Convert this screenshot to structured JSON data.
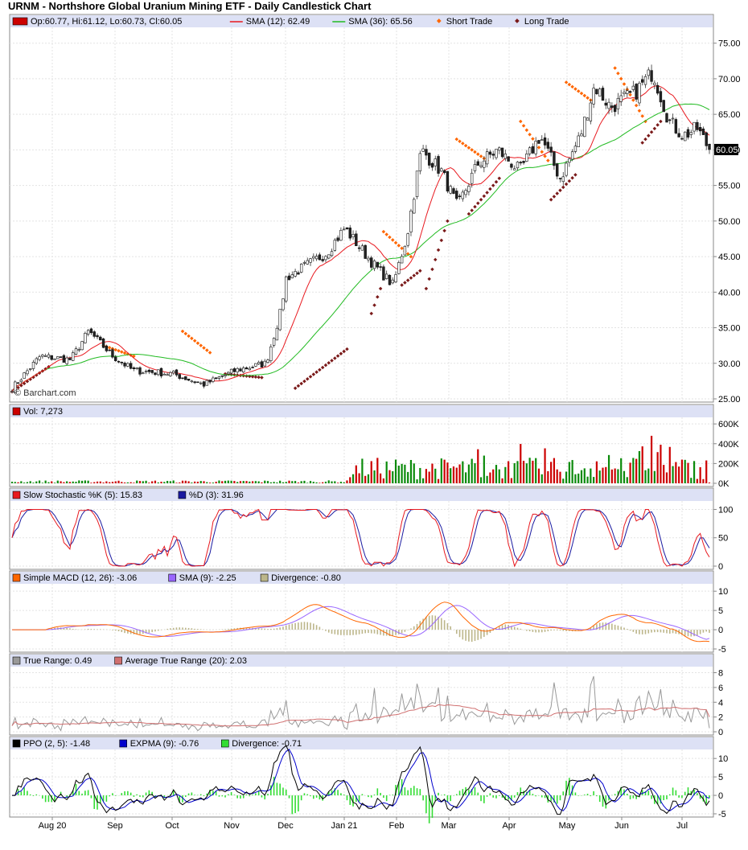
{
  "title": "URNM - Northshore Global Uranium Mining ETF - Daily Candlestick Chart",
  "watermark": "© Barchart.com",
  "x_tick_labels": [
    "Aug 20",
    "Sep",
    "Oct",
    "Nov",
    "Dec",
    "Jan 21",
    "Feb",
    "Mar",
    "Apr",
    "May",
    "Jun",
    "Jul"
  ],
  "colors": {
    "up": "#0a8a0a",
    "down": "#cc0000",
    "legend_bg": "#dde1f5",
    "sma12": "#e8191f",
    "sma36": "#22bb22",
    "short_trade": "#ff6600",
    "long_trade": "#7a1a1a",
    "stoch_k": "#e8191f",
    "stoch_d": "#1a1aa0",
    "macd": "#ff6600",
    "macd_sma": "#9966ff",
    "macd_div": "#bcb68a",
    "tr": "#999999",
    "atr": "#d07070",
    "ppo": "#000000",
    "expma": "#0000cc",
    "ppo_div": "#33dd33"
  },
  "panels": {
    "price": {
      "legend": [
        "Op:60.77, Hi:61.12, Lo:60.73, Cl:60.05",
        "SMA (12): 62.49",
        "SMA (36): 65.56",
        "Short Trade",
        "Long Trade"
      ],
      "y_ticks": [
        "75.00",
        "70.00",
        "65.00",
        "60.00",
        "55.00",
        "50.00",
        "45.00",
        "40.00",
        "35.00",
        "30.00",
        "25.00"
      ],
      "last_price": "60.05"
    },
    "volume": {
      "legend": [
        "Vol: 7,273"
      ],
      "y_ticks": [
        "600K",
        "400K",
        "200K",
        "0K"
      ]
    },
    "stochastic": {
      "legend": [
        "Slow Stochastic %K (5): 15.83",
        "%D (3): 31.96"
      ],
      "y_ticks": [
        "100",
        "50",
        "0"
      ]
    },
    "macd": {
      "legend": [
        "Simple MACD (12, 26): -3.06",
        "SMA (9): -2.25",
        "Divergence: -0.80"
      ],
      "y_ticks": [
        "10",
        "5",
        "0",
        "-5"
      ]
    },
    "true_range": {
      "legend": [
        "True Range: 0.49",
        "Average True Range (20): 2.03"
      ],
      "y_ticks": [
        "8",
        "6",
        "4",
        "2",
        "0"
      ]
    },
    "ppo": {
      "legend": [
        "PPO (2, 5): -1.48",
        "EXPMA (9): -0.76",
        "Divergence: -0.71"
      ],
      "y_ticks": [
        "10",
        "5",
        "0",
        "-5"
      ]
    }
  },
  "chart_data": {
    "type": "candlestick",
    "title": "URNM - Northshore Global Uranium Mining ETF - Daily Candlestick Chart",
    "x_ticks": [
      "Aug 20",
      "Sep",
      "Oct",
      "Nov",
      "Dec",
      "Jan 21",
      "Feb",
      "Mar",
      "Apr",
      "May",
      "Jun",
      "Jul"
    ],
    "price_ylim": [
      25,
      77
    ],
    "price_key_points": [
      [
        "2020-07-27",
        26.5
      ],
      [
        "2020-08-10",
        31
      ],
      [
        "2020-08-25",
        30.5
      ],
      [
        "2020-09-03",
        34.5
      ],
      [
        "2020-09-15",
        31
      ],
      [
        "2020-09-25",
        29
      ],
      [
        "2020-10-15",
        28.5
      ],
      [
        "2020-10-30",
        27
      ],
      [
        "2020-11-15",
        29
      ],
      [
        "2020-11-30",
        30
      ],
      [
        "2020-12-07",
        37
      ],
      [
        "2020-12-10",
        42
      ],
      [
        "2020-12-30",
        45.5
      ],
      [
        "2021-01-08",
        49
      ],
      [
        "2021-01-22",
        44
      ],
      [
        "2021-02-01",
        41
      ],
      [
        "2021-02-08",
        48
      ],
      [
        "2021-02-15",
        60
      ],
      [
        "2021-02-25",
        57
      ],
      [
        "2021-03-05",
        52
      ],
      [
        "2021-03-15",
        58
      ],
      [
        "2021-03-25",
        60
      ],
      [
        "2021-04-05",
        57
      ],
      [
        "2021-04-15",
        62
      ],
      [
        "2021-04-25",
        56
      ],
      [
        "2021-05-05",
        62
      ],
      [
        "2021-05-12",
        69
      ],
      [
        "2021-05-20",
        66
      ],
      [
        "2021-06-01",
        68
      ],
      [
        "2021-06-10",
        71
      ],
      [
        "2021-06-18",
        64
      ],
      [
        "2021-06-25",
        62
      ],
      [
        "2021-07-02",
        63
      ],
      [
        "2021-07-08",
        60.05
      ]
    ],
    "sma12_last": 62.49,
    "sma36_last": 65.56,
    "volume_ylim": [
      0,
      650000
    ],
    "stochastic": {
      "k_last": 15.83,
      "d_last": 31.96,
      "ylim": [
        0,
        100
      ]
    },
    "macd": {
      "macd_last": -3.06,
      "sma9_last": -2.25,
      "divergence_last": -0.8,
      "ylim": [
        -5,
        11
      ]
    },
    "true_range": {
      "tr_last": 0.49,
      "atr20_last": 2.03,
      "ylim": [
        0,
        8.6
      ]
    },
    "ppo": {
      "ppo_last": -1.48,
      "expma9_last": -0.76,
      "divergence_last": -0.71,
      "ylim": [
        -5,
        12
      ]
    }
  }
}
